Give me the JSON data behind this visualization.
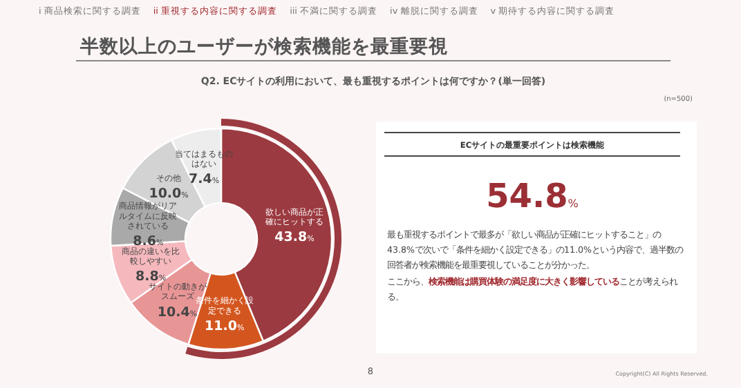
{
  "chart_data": [
    {
      "type": "donut",
      "title": "半数以上のユーザーが検索機能を最重要視",
      "subtitle": "Q2. ECサイトの利用において、最も重視するポイントは何ですか？(単一回答)",
      "categories": [
        "欲しい商品が正確にヒットする",
        "条件を細かく設定できる",
        "サイトの動きがスムーズ",
        "商品の違いを比較しやすい",
        "商品情報がリアルタイムに反映されている",
        "その他",
        "当てはまるものはない"
      ],
      "values": [
        43.8,
        11.0,
        10.4,
        8.8,
        8.6,
        10.0,
        7.4
      ],
      "colors": [
        "#9b3a40",
        "#d4561f",
        "#e89596",
        "#f5b9bd",
        "#a9a9a9",
        "#d3d3d3",
        "#ededed"
      ],
      "value_labels": [
        "43.8%",
        "11.0%",
        "10.4%",
        "8.8%",
        "8.6%",
        "10.0%",
        "7.4%"
      ],
      "annotations": [
        "i 商品検索に関する調査",
        "ii 重視する内容に関する調査",
        "iii 不満に関する調査",
        "iv 離脱に関する調査",
        "v 期待する内容に関する調査",
        "(n=500)",
        "8",
        "Copyright(C) All Rights Reserved."
      ]
    },
    {
      "type": "other",
      "title": "ECサイトの最重要ポイントは検索機能",
      "annotations": [
        "54.8%",
        "最も重視するポイントで最多が「欲しい商品が正確にヒットすること」の43.8%で次いで「条件を細かく設定できる」の11.0%という内容で、過半数の回答者が検索機能を最重要視していることが分かった。",
        "ここから、",
        "検索機能は購買体験の満足度に大きく影響している",
        "ことが考えられる。"
      ]
    }
  ]
}
